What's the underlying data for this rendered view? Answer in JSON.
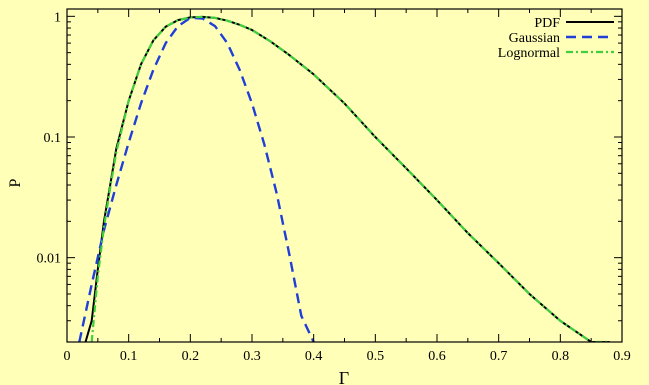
{
  "colors": {
    "background": "#ffffb8",
    "pdf": "#000000",
    "gaussian": "#1f3fd8",
    "lognormal": "#3fcf3f"
  },
  "chart_data": {
    "type": "line",
    "title": "",
    "xlabel": "Γ",
    "ylabel": "P",
    "xlim": [
      0,
      0.9
    ],
    "ylim": [
      0.002,
      1.15
    ],
    "yscale": "log",
    "grid": false,
    "legend_position": "top-right",
    "x_ticks": [
      0,
      0.1,
      0.2,
      0.3,
      0.4,
      0.5,
      0.6,
      0.7,
      0.8,
      0.9
    ],
    "x_tick_labels": [
      "0",
      "0.1",
      "0.2",
      "0.3",
      "0.4",
      "0.5",
      "0.6",
      "0.7",
      "0.8",
      "0.9"
    ],
    "y_ticks": [
      1,
      0.1,
      0.01
    ],
    "y_tick_labels": [
      "1",
      "0.1",
      "0.01"
    ],
    "series": [
      {
        "name": "PDF",
        "style": "solid",
        "color": "#000000",
        "x": [
          0.03,
          0.04,
          0.05,
          0.06,
          0.07,
          0.08,
          0.1,
          0.12,
          0.14,
          0.16,
          0.18,
          0.2,
          0.22,
          0.24,
          0.26,
          0.28,
          0.3,
          0.33,
          0.36,
          0.4,
          0.45,
          0.5,
          0.55,
          0.6,
          0.65,
          0.7,
          0.75,
          0.8,
          0.85,
          0.88
        ],
        "y": [
          0.002,
          0.003,
          0.008,
          0.02,
          0.04,
          0.08,
          0.2,
          0.4,
          0.63,
          0.82,
          0.93,
          0.98,
          0.99,
          0.97,
          0.92,
          0.85,
          0.77,
          0.62,
          0.48,
          0.33,
          0.19,
          0.1,
          0.055,
          0.03,
          0.016,
          0.009,
          0.005,
          0.003,
          0.002,
          0.002
        ]
      },
      {
        "name": "Gaussian",
        "style": "dashed",
        "color": "#1f3fd8",
        "x": [
          0.02,
          0.04,
          0.06,
          0.08,
          0.1,
          0.12,
          0.14,
          0.16,
          0.18,
          0.2,
          0.22,
          0.24,
          0.26,
          0.28,
          0.3,
          0.32,
          0.34,
          0.36,
          0.38,
          0.4
        ],
        "y": [
          0.002,
          0.006,
          0.017,
          0.04,
          0.09,
          0.19,
          0.36,
          0.6,
          0.83,
          0.97,
          0.96,
          0.83,
          0.6,
          0.36,
          0.19,
          0.087,
          0.034,
          0.011,
          0.0033,
          0.002
        ]
      },
      {
        "name": "Lognormal",
        "style": "dash-dot",
        "color": "#3fcf3f",
        "x": [
          0.04,
          0.05,
          0.06,
          0.07,
          0.08,
          0.1,
          0.12,
          0.14,
          0.16,
          0.18,
          0.2,
          0.22,
          0.24,
          0.26,
          0.28,
          0.3,
          0.33,
          0.36,
          0.4,
          0.45,
          0.5,
          0.55,
          0.6,
          0.65,
          0.7,
          0.75,
          0.8,
          0.85,
          0.88
        ],
        "y": [
          0.002,
          0.007,
          0.018,
          0.038,
          0.075,
          0.2,
          0.4,
          0.63,
          0.82,
          0.93,
          0.98,
          0.99,
          0.97,
          0.92,
          0.85,
          0.77,
          0.62,
          0.48,
          0.33,
          0.19,
          0.1,
          0.055,
          0.03,
          0.016,
          0.009,
          0.005,
          0.003,
          0.002,
          0.002
        ]
      }
    ]
  }
}
